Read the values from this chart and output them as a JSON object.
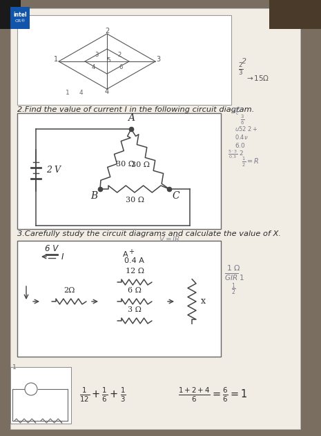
{
  "bg_color": "#7a6e60",
  "paper_color": "#e8e2d8",
  "paper_inner": "#f2ede4",
  "title2": "2.Find the value of current I in the following circuit diagram.",
  "title3": "3.Carefully study the circuit diagrams and calculate the value of X.",
  "circuit2": {
    "battery_label": "2 V",
    "r1_label": "30 Ω",
    "r2_label": "30 Ω",
    "r3_label": "30 Ω",
    "node_a": "A",
    "node_b": "B",
    "node_c": "C"
  },
  "circuit3": {
    "battery_label": "6 V",
    "current_label": "I",
    "r1_label": "2Ω",
    "r2_label": "12 Ω",
    "r3_label": "6 Ω",
    "r4_label": "3 Ω",
    "rx_label": "x"
  },
  "wire_color": "#444444",
  "text_color": "#2a2a2a",
  "note_color": "#555566"
}
